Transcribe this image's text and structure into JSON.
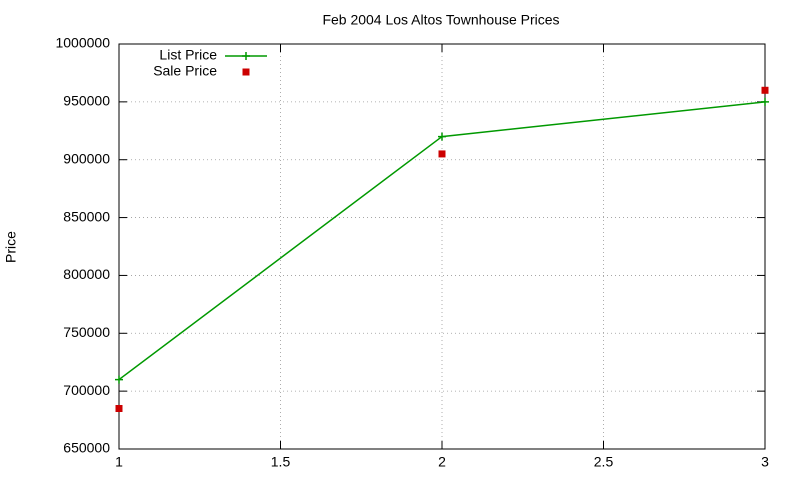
{
  "chart_data": {
    "type": "line",
    "title": "Feb 2004 Los Altos Townhouse Prices",
    "y_label": "Price",
    "x": [
      1,
      2,
      3
    ],
    "series": [
      {
        "name": "List Price",
        "color": "#009900",
        "style": "linespoints",
        "values": [
          710000,
          920000,
          950000
        ]
      },
      {
        "name": "Sale Price",
        "color": "#cc0000",
        "style": "points",
        "values": [
          685000,
          905000,
          960000
        ]
      }
    ],
    "xlim": [
      1,
      3
    ],
    "xticks": [
      1,
      1.5,
      2,
      2.5,
      3
    ],
    "ylim": [
      650000,
      1000000
    ],
    "yticks": [
      650000,
      700000,
      750000,
      800000,
      850000,
      900000,
      950000,
      1000000
    ],
    "grid": true,
    "legend": "top-left"
  }
}
